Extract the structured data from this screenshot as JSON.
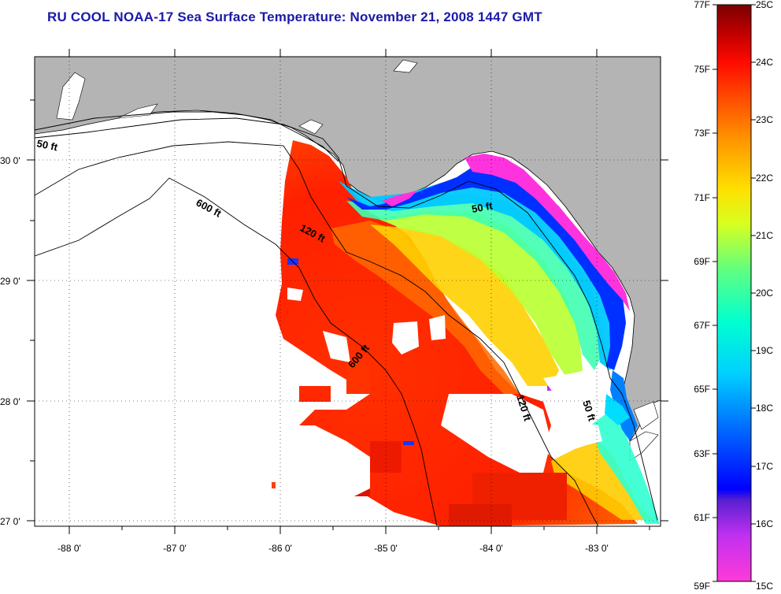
{
  "title": "RU COOL  NOAA-17  Sea Surface Temperature:  November 21, 2008 1447 GMT",
  "map": {
    "lon_range": [
      -88.3,
      -82.45
    ],
    "lat_range": [
      26.95,
      30.9
    ],
    "grid": "dotted",
    "land_color": "#b4b4b4",
    "x_ticks": [
      "-88 0'",
      "-87 0'",
      "-86 0'",
      "-85 0'",
      "-84 0'",
      "-83 0'"
    ],
    "y_ticks": [
      "30 0'",
      "29 0'",
      "28 0'",
      "27 0'"
    ],
    "contour_labels": [
      "50 ft",
      "600 ft",
      "120 ft",
      "50 ft",
      "600 ft",
      "120 ft",
      "50 ft"
    ],
    "temperature_scale_text": {
      "fahrenheit_label": "F",
      "celsius_label": "C"
    }
  },
  "colorbar": {
    "fahrenheit_ticks": [
      "77F",
      "75F",
      "73F",
      "71F",
      "69F",
      "67F",
      "65F",
      "63F",
      "61F",
      "59F"
    ],
    "celsius_ticks": [
      "25C",
      "24C",
      "23C",
      "22C",
      "21C",
      "20C",
      "19C",
      "18C",
      "17C",
      "16C",
      "15C"
    ],
    "colors": [
      "#ff33dd",
      "#c82cf0",
      "#6622cc",
      "#0000ff",
      "#0077ff",
      "#00c8ff",
      "#00ffdd",
      "#44ff99",
      "#b6ff33",
      "#ffff00",
      "#ffc000",
      "#ff8000",
      "#ff3300",
      "#e00000",
      "#aa0000",
      "#800000"
    ]
  }
}
